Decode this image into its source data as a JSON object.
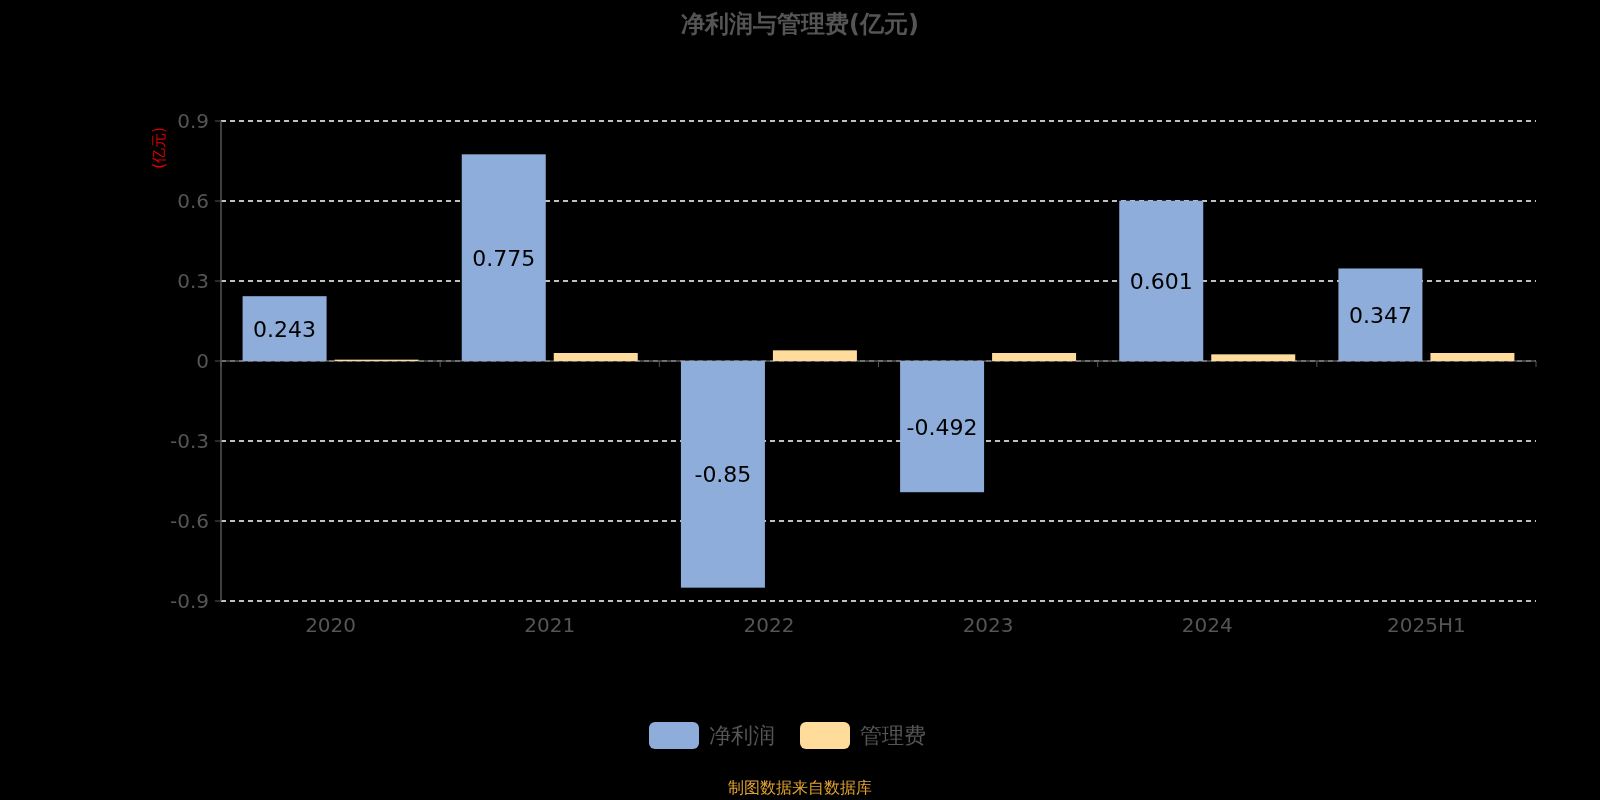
{
  "chart_data": {
    "type": "bar",
    "title": "净利润与管理费(亿元)",
    "ylabel": "(亿元)",
    "categories": [
      "2020",
      "2021",
      "2022",
      "2023",
      "2024",
      "2025H1"
    ],
    "series": [
      {
        "name": "净利润",
        "color": "#8eaddb",
        "values": [
          0.243,
          0.775,
          -0.85,
          -0.492,
          0.601,
          0.347
        ],
        "value_labels": [
          "0.243",
          "0.775",
          "-0.85",
          "-0.492",
          "0.601",
          "0.347"
        ]
      },
      {
        "name": "管理费",
        "color": "#ffdb9c",
        "values": [
          0.005,
          0.03,
          0.04,
          0.03,
          0.025,
          0.03
        ]
      }
    ],
    "ylim": [
      -0.9,
      0.9
    ],
    "yticks": [
      -0.9,
      -0.6,
      -0.3,
      0,
      0.3,
      0.6,
      0.9
    ],
    "grid": "y",
    "legend": "bottom",
    "annotations": [
      "制图数据来自数据库"
    ]
  }
}
